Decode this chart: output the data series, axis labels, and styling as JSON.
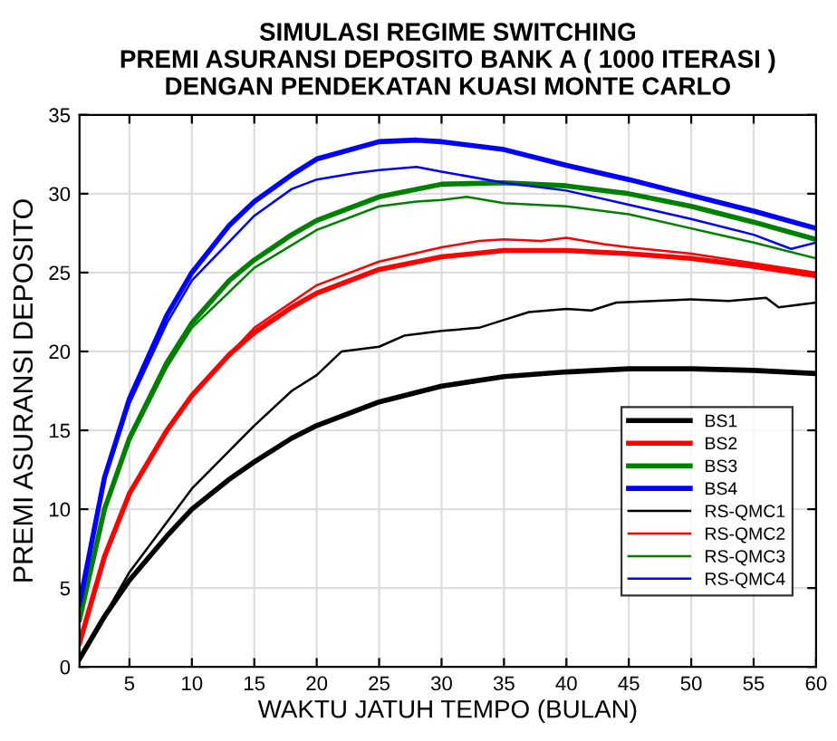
{
  "chart_data": {
    "type": "line",
    "title": "SIMULASI REGIME SWITCHING\nPREMI ASURANSI DEPOSITO BANK A ( 1000 ITERASI )\nDENGAN PENDEKATAN KUASI MONTE CARLO",
    "xlabel": "WAKTU JATUH TEMPO (BULAN)",
    "ylabel": "PREMI ASURANSI DEPOSITO",
    "xlim": [
      1,
      60
    ],
    "xticks": [
      5,
      10,
      15,
      20,
      25,
      30,
      35,
      40,
      45,
      50,
      55,
      60
    ],
    "ylim": [
      0,
      35
    ],
    "yticks": [
      0,
      5,
      10,
      15,
      20,
      25,
      30,
      35
    ],
    "grid": true,
    "legend": "right",
    "marker": "none",
    "line_style": "solid",
    "series": [
      {
        "name": "BS1",
        "color": "#000000",
        "x": [
          1,
          3,
          5,
          8,
          10,
          13,
          15,
          18,
          20,
          25,
          30,
          35,
          40,
          45,
          50,
          55,
          60
        ],
        "values": [
          0.5,
          3.2,
          5.5,
          8.3,
          10,
          11.9,
          13,
          14.5,
          15.3,
          16.8,
          17.8,
          18.4,
          18.7,
          18.9,
          18.9,
          18.8,
          18.6
        ]
      },
      {
        "name": "BS2",
        "color": "#ff0000",
        "x": [
          1,
          3,
          5,
          8,
          10,
          13,
          15,
          18,
          20,
          25,
          30,
          35,
          40,
          45,
          50,
          55,
          60
        ],
        "values": [
          1.5,
          7,
          11,
          15,
          17.2,
          19.8,
          21.2,
          22.8,
          23.7,
          25.2,
          26,
          26.4,
          26.4,
          26.2,
          25.9,
          25.4,
          24.8
        ]
      },
      {
        "name": "BS3",
        "color": "#008000",
        "x": [
          1,
          3,
          5,
          8,
          10,
          13,
          15,
          18,
          20,
          25,
          30,
          35,
          40,
          45,
          50,
          55,
          60
        ],
        "values": [
          3,
          10,
          14.5,
          19.3,
          21.8,
          24.5,
          25.8,
          27.4,
          28.3,
          29.8,
          30.6,
          30.7,
          30.5,
          30,
          29.2,
          28.2,
          27.1
        ]
      },
      {
        "name": "BS4",
        "color": "#0000ff",
        "x": [
          1,
          3,
          5,
          8,
          10,
          13,
          15,
          18,
          20,
          25,
          28,
          30,
          35,
          40,
          45,
          50,
          55,
          60
        ],
        "values": [
          4,
          12,
          17,
          22.3,
          25,
          28,
          29.5,
          31.2,
          32.2,
          33.3,
          33.4,
          33.3,
          32.8,
          31.8,
          30.9,
          29.9,
          28.9,
          27.8
        ]
      },
      {
        "name": "RS-QMC1",
        "color": "#000000",
        "x": [
          1,
          5,
          10,
          15,
          18,
          20,
          22,
          25,
          27,
          30,
          33,
          35,
          37,
          40,
          42,
          44,
          47,
          50,
          53,
          56,
          57,
          60
        ],
        "values": [
          0.5,
          6,
          11.3,
          15.3,
          17.5,
          18.5,
          20,
          20.3,
          21,
          21.3,
          21.5,
          22,
          22.5,
          22.7,
          22.6,
          23.1,
          23.2,
          23.3,
          23.2,
          23.4,
          22.8,
          23.1
        ]
      },
      {
        "name": "RS-QMC2",
        "color": "#ff0000",
        "x": [
          1,
          3,
          5,
          8,
          10,
          15,
          20,
          25,
          30,
          33,
          35,
          38,
          40,
          43,
          45,
          50,
          55,
          60
        ],
        "values": [
          1.5,
          7,
          11,
          15.1,
          17.3,
          21.5,
          24.2,
          25.7,
          26.6,
          27,
          27.1,
          27,
          27.2,
          26.8,
          26.6,
          26.2,
          25.6,
          25
        ]
      },
      {
        "name": "RS-QMC3",
        "color": "#008000",
        "x": [
          1,
          3,
          5,
          8,
          10,
          15,
          20,
          25,
          28,
          30,
          32,
          35,
          40,
          45,
          50,
          55,
          60
        ],
        "values": [
          3,
          9.9,
          14.3,
          19,
          21.5,
          25.3,
          27.7,
          29.2,
          29.5,
          29.6,
          29.8,
          29.4,
          29.2,
          28.7,
          27.8,
          26.9,
          25.9
        ]
      },
      {
        "name": "RS-QMC4",
        "color": "#0000ff",
        "x": [
          1,
          3,
          5,
          8,
          10,
          15,
          18,
          20,
          23,
          25,
          28,
          30,
          35,
          40,
          45,
          50,
          55,
          58,
          60
        ],
        "values": [
          4,
          11.8,
          16.7,
          21.8,
          24.5,
          28.6,
          30.3,
          30.9,
          31.3,
          31.5,
          31.7,
          31.4,
          30.7,
          30.2,
          29.3,
          28.4,
          27.4,
          26.5,
          26.9
        ]
      }
    ]
  }
}
